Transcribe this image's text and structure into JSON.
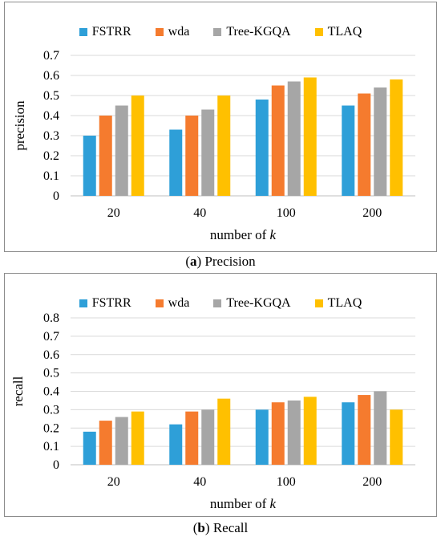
{
  "colors": {
    "FSTRR": "#2e9fd8",
    "wda": "#f57b2e",
    "Tree-KGQA": "#a6a6a6",
    "TLAQ": "#ffc000",
    "grid": "#d9d9d9",
    "axis": "#bfbfbf"
  },
  "chart_data": [
    {
      "type": "bar",
      "caption_letter": "a",
      "caption_text": "Precision",
      "categories": [
        "20",
        "40",
        "100",
        "200"
      ],
      "series": [
        {
          "name": "FSTRR",
          "values": [
            0.3,
            0.33,
            0.48,
            0.45
          ]
        },
        {
          "name": "wda",
          "values": [
            0.4,
            0.4,
            0.55,
            0.51
          ]
        },
        {
          "name": "Tree-KGQA",
          "values": [
            0.45,
            0.43,
            0.57,
            0.54
          ]
        },
        {
          "name": "TLAQ",
          "values": [
            0.5,
            0.5,
            0.59,
            0.58
          ]
        }
      ],
      "xlabel_prefix": "number of ",
      "xlabel_var": "k",
      "ylabel": "precision",
      "ylim": [
        0,
        0.7
      ],
      "yticks": [
        "0",
        "0.1",
        "0.2",
        "0.3",
        "0.4",
        "0.5",
        "0.6",
        "0.7"
      ],
      "grid": true,
      "legend": "top"
    },
    {
      "type": "bar",
      "caption_letter": "b",
      "caption_text": "Recall",
      "categories": [
        "20",
        "40",
        "100",
        "200"
      ],
      "series": [
        {
          "name": "FSTRR",
          "values": [
            0.18,
            0.22,
            0.3,
            0.34
          ]
        },
        {
          "name": "wda",
          "values": [
            0.24,
            0.29,
            0.34,
            0.38
          ]
        },
        {
          "name": "Tree-KGQA",
          "values": [
            0.26,
            0.3,
            0.35,
            0.4
          ]
        },
        {
          "name": "TLAQ",
          "values": [
            0.29,
            0.36,
            0.37,
            0.3
          ]
        }
      ],
      "xlabel_prefix": "number of ",
      "xlabel_var": "k",
      "ylabel": "recall",
      "ylim": [
        0,
        0.8
      ],
      "yticks": [
        "0",
        "0.1",
        "0.2",
        "0.3",
        "0.4",
        "0.5",
        "0.6",
        "0.7",
        "0.8"
      ],
      "grid": true,
      "legend": "top"
    }
  ]
}
